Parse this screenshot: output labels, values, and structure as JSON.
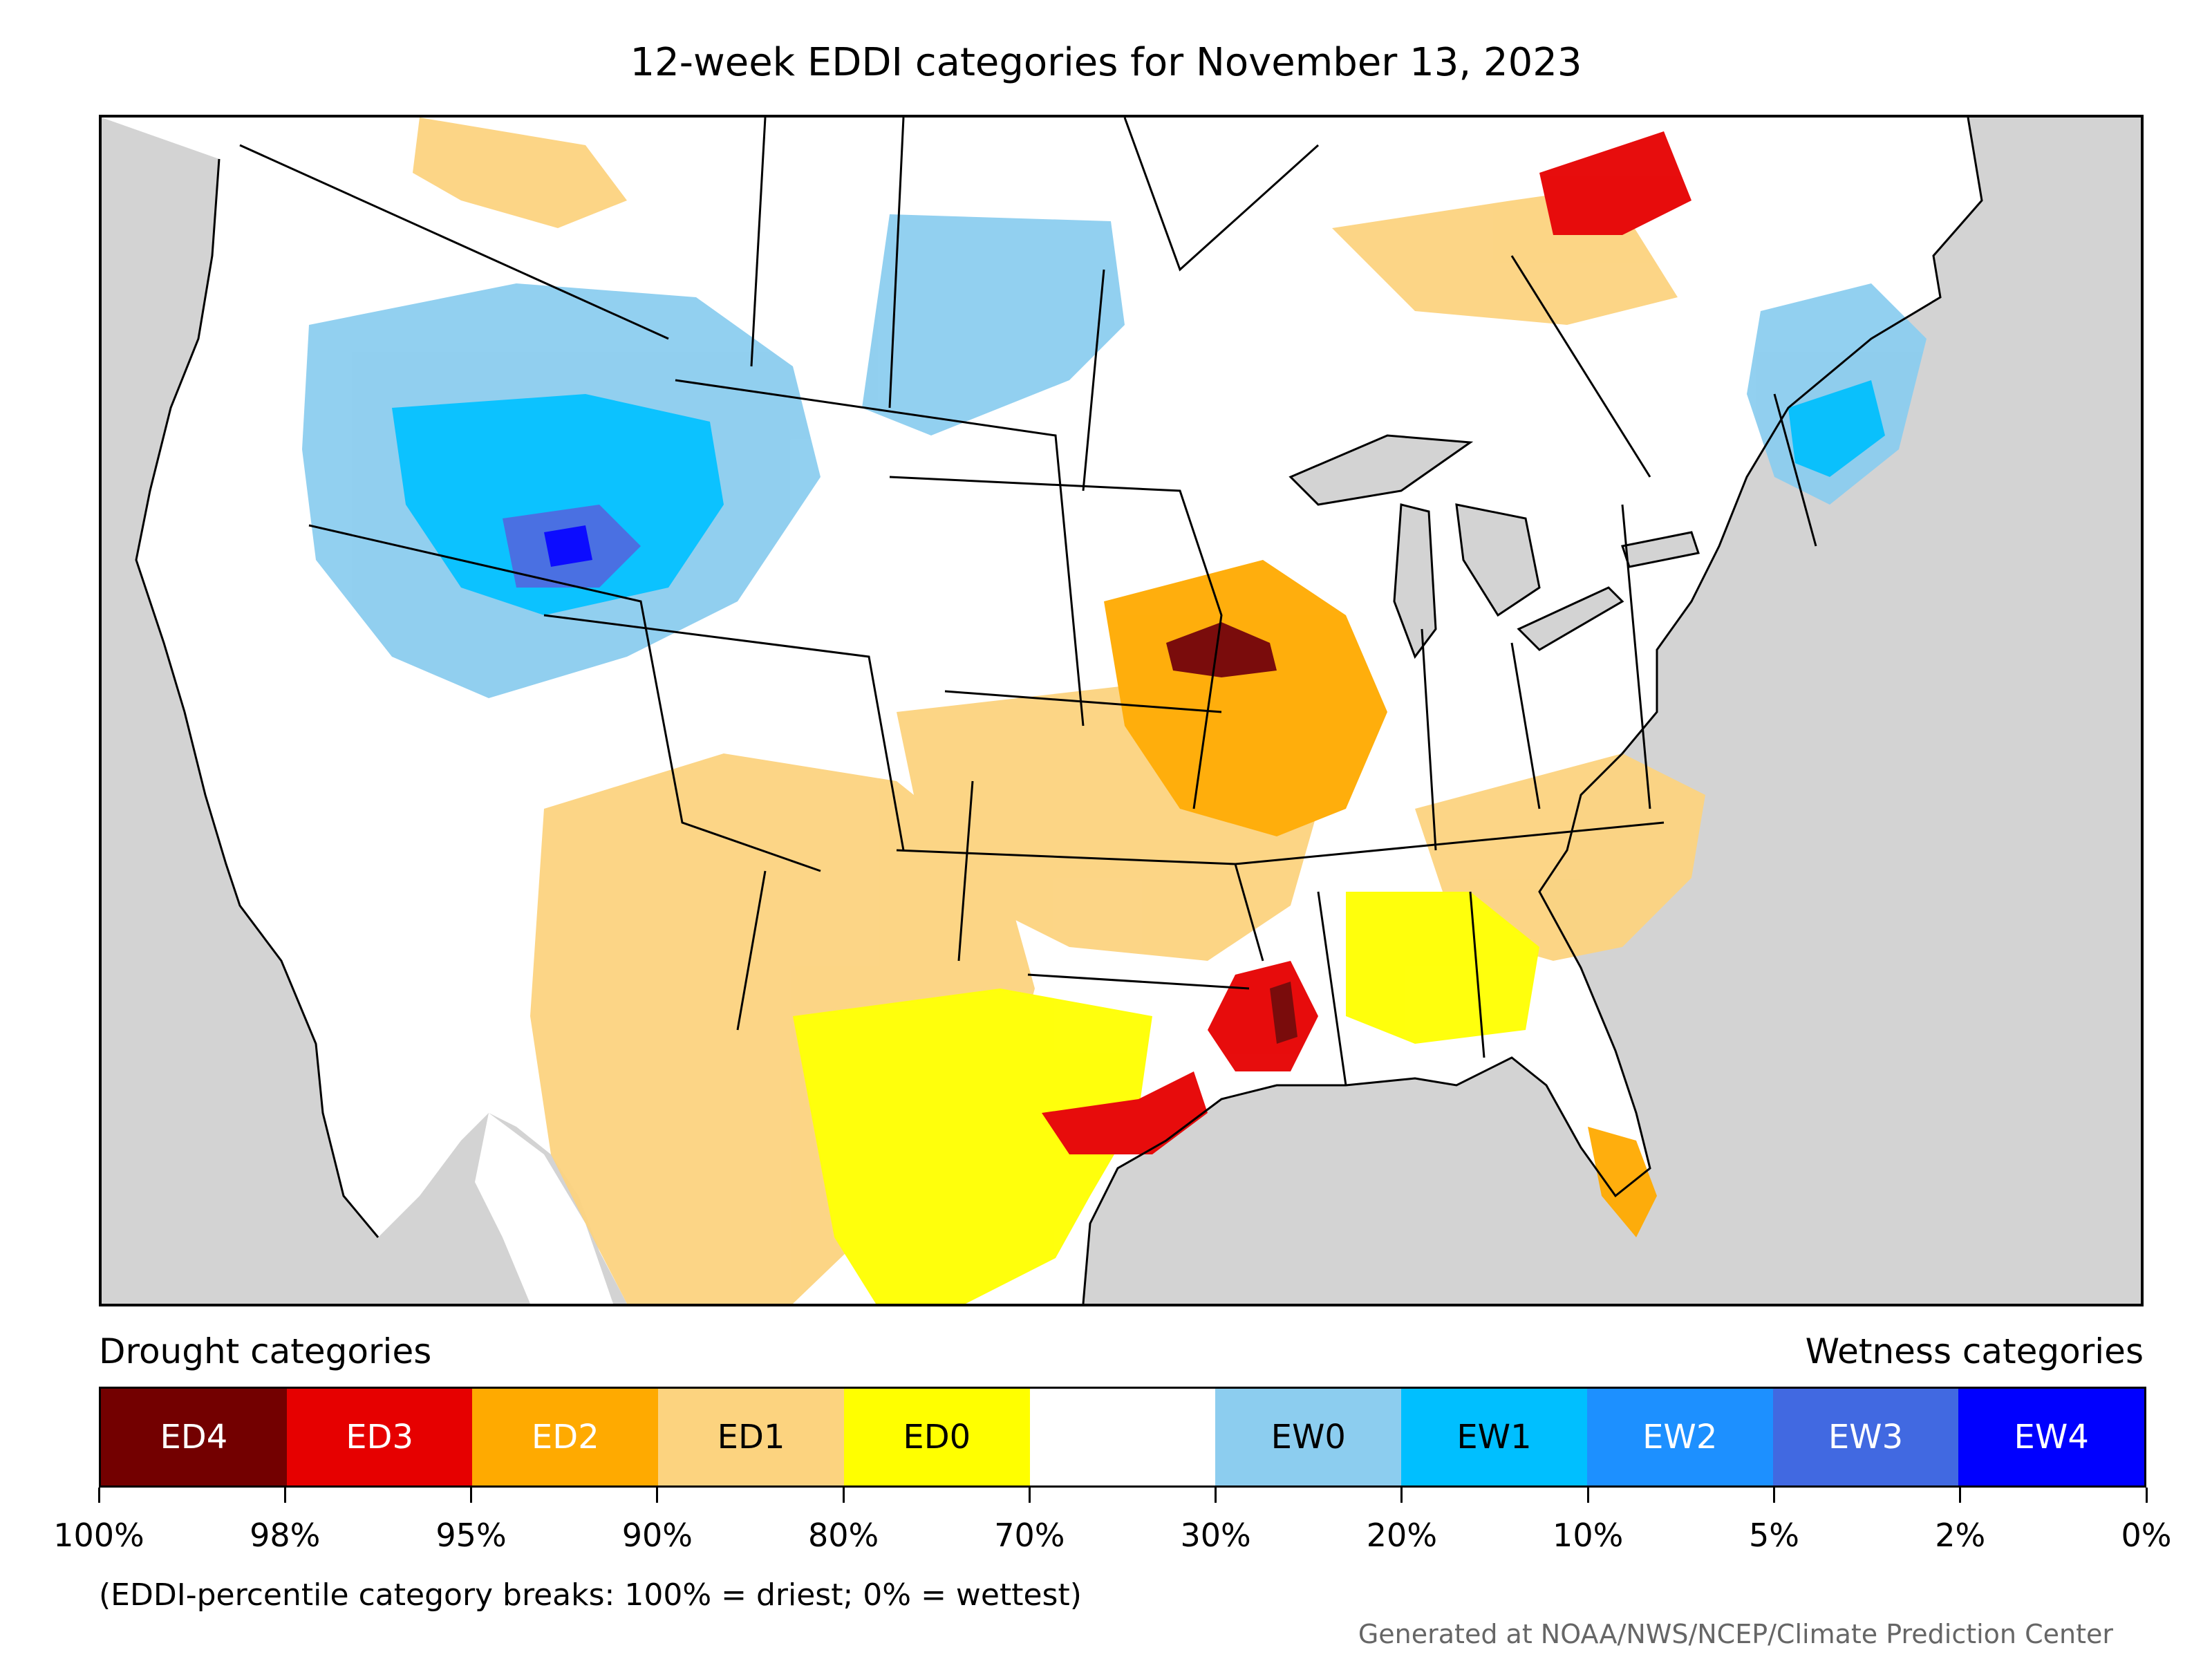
{
  "title": "12-week EDDI categories for November 13, 2023",
  "legend": {
    "drought_heading": "Drought categories",
    "wetness_heading": "Wetness categories",
    "categories": [
      {
        "label": "ED4",
        "color": "#730000",
        "text_color": "#ffffff"
      },
      {
        "label": "ED3",
        "color": "#e60000",
        "text_color": "#ffffff"
      },
      {
        "label": "ED2",
        "color": "#ffaa00",
        "text_color": "#ffffff"
      },
      {
        "label": "ED1",
        "color": "#fcd37f",
        "text_color": "#000000"
      },
      {
        "label": "ED0",
        "color": "#ffff00",
        "text_color": "#000000"
      },
      {
        "label": "",
        "color": "#ffffff",
        "text_color": "#000000"
      },
      {
        "label": "EW0",
        "color": "#8ccdef",
        "text_color": "#000000"
      },
      {
        "label": "EW1",
        "color": "#00bfff",
        "text_color": "#000000"
      },
      {
        "label": "EW2",
        "color": "#1d90ff",
        "text_color": "#ffffff"
      },
      {
        "label": "EW3",
        "color": "#4169e1",
        "text_color": "#ffffff"
      },
      {
        "label": "EW4",
        "color": "#0000ff",
        "text_color": "#ffffff"
      }
    ],
    "breaks": [
      "100%",
      "98%",
      "95%",
      "90%",
      "80%",
      "70%",
      "30%",
      "20%",
      "10%",
      "5%",
      "2%",
      "0%"
    ]
  },
  "note": "(EDDI-percentile category breaks: 100% = driest; 0% = wettest)",
  "credit": "Generated at NOAA/NWS/NCEP/Climate Prediction Center",
  "map": {
    "background_color": "#d3d3d3",
    "land_color": "#ffffff",
    "lake_color": "#d3d3d3",
    "border_color": "#000000"
  }
}
